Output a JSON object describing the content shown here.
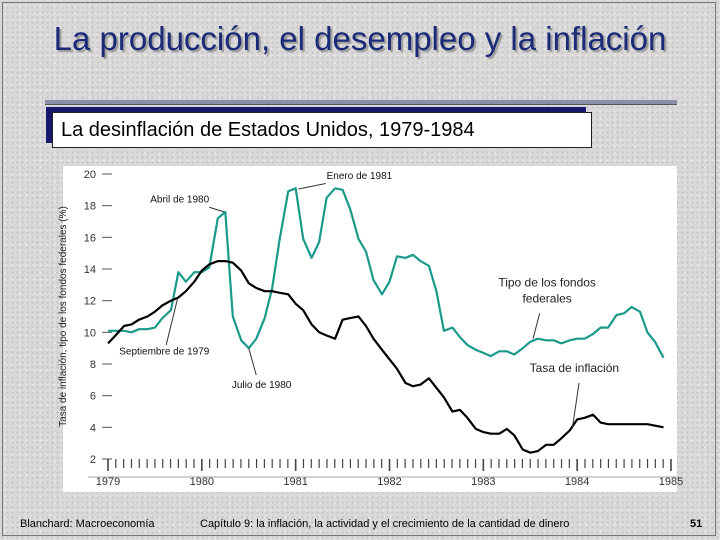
{
  "slide": {
    "title": "La producción, el desempleo y la inflación",
    "subtitle": "La desinflación de Estados Unidos, 1979-1984",
    "footer_left": "Blanchard: Macroeconomía",
    "footer_center": "Capítulo 9: la inflación, la actividad y el crecimiento de la cantidad de dinero",
    "page_number": "51"
  },
  "colors": {
    "title": "#1a2a78",
    "fed_funds_series": "#1a9a8a",
    "inflation_series": "#000000",
    "subtitle_shadow": "#15186b"
  },
  "chart_data": {
    "type": "line",
    "title": "",
    "xlabel": "",
    "ylabel": "Tasa de inflación, tipo de los fondos federales (%)",
    "xlim": [
      1979.0,
      1985.0
    ],
    "ylim": [
      2,
      20
    ],
    "yticks": [
      2,
      4,
      6,
      8,
      10,
      12,
      14,
      16,
      18,
      20
    ],
    "xticks": [
      1979,
      1980,
      1981,
      1982,
      1983,
      1984,
      1985
    ],
    "xtick_labels": [
      "1979",
      "1980",
      "1981",
      "1982",
      "1983",
      "1984",
      "1985"
    ],
    "grid": false,
    "series": [
      {
        "name": "Tipo de los fondos federales",
        "color": "#1a9a8a",
        "x": [
          1979.0,
          1979.08,
          1979.17,
          1979.25,
          1979.33,
          1979.42,
          1979.5,
          1979.58,
          1979.67,
          1979.75,
          1979.83,
          1979.92,
          1980.0,
          1980.08,
          1980.17,
          1980.25,
          1980.33,
          1980.42,
          1980.5,
          1980.58,
          1980.67,
          1980.75,
          1980.83,
          1980.92,
          1981.0,
          1981.08,
          1981.17,
          1981.25,
          1981.33,
          1981.42,
          1981.5,
          1981.58,
          1981.67,
          1981.75,
          1981.83,
          1981.92,
          1982.0,
          1982.08,
          1982.17,
          1982.25,
          1982.33,
          1982.42,
          1982.5,
          1982.58,
          1982.67,
          1982.75,
          1982.83,
          1982.92,
          1983.0,
          1983.08,
          1983.17,
          1983.25,
          1983.33,
          1983.42,
          1983.5,
          1983.58,
          1983.67,
          1983.75,
          1983.83,
          1983.92,
          1984.0,
          1984.08,
          1984.17,
          1984.25,
          1984.33,
          1984.42,
          1984.5,
          1984.58,
          1984.67,
          1984.75,
          1984.83,
          1984.92
        ],
        "values": [
          10.1,
          10.1,
          10.1,
          10.0,
          10.2,
          10.2,
          10.3,
          10.9,
          11.4,
          13.8,
          13.2,
          13.8,
          13.8,
          14.1,
          17.2,
          17.6,
          11.0,
          9.5,
          9.0,
          9.6,
          10.9,
          12.8,
          15.9,
          18.9,
          19.1,
          15.9,
          14.7,
          15.7,
          18.5,
          19.1,
          19.0,
          17.8,
          15.9,
          15.1,
          13.3,
          12.4,
          13.2,
          14.8,
          14.7,
          14.9,
          14.5,
          14.2,
          12.6,
          10.1,
          10.3,
          9.7,
          9.2,
          8.9,
          8.7,
          8.5,
          8.8,
          8.8,
          8.6,
          9.0,
          9.4,
          9.6,
          9.5,
          9.5,
          9.3,
          9.5,
          9.6,
          9.6,
          9.9,
          10.3,
          10.3,
          11.1,
          11.2,
          11.6,
          11.3,
          9.99,
          9.4,
          8.4
        ]
      },
      {
        "name": "Tasa de inflación",
        "color": "#000000",
        "x": [
          1979.0,
          1979.08,
          1979.17,
          1979.25,
          1979.33,
          1979.42,
          1979.5,
          1979.58,
          1979.67,
          1979.75,
          1979.83,
          1979.92,
          1980.0,
          1980.08,
          1980.17,
          1980.25,
          1980.33,
          1980.42,
          1980.5,
          1980.58,
          1980.67,
          1980.75,
          1980.83,
          1980.92,
          1981.0,
          1981.08,
          1981.17,
          1981.25,
          1981.33,
          1981.42,
          1981.5,
          1981.58,
          1981.67,
          1981.75,
          1981.83,
          1981.92,
          1982.0,
          1982.08,
          1982.17,
          1982.25,
          1982.33,
          1982.42,
          1982.5,
          1982.58,
          1982.67,
          1982.75,
          1982.83,
          1982.92,
          1983.0,
          1983.08,
          1983.17,
          1983.25,
          1983.33,
          1983.42,
          1983.5,
          1983.58,
          1983.67,
          1983.75,
          1983.83,
          1983.92,
          1984.0,
          1984.08,
          1984.17,
          1984.25,
          1984.33,
          1984.5,
          1984.75,
          1984.92
        ],
        "values": [
          9.3,
          9.8,
          10.4,
          10.5,
          10.8,
          11.0,
          11.3,
          11.7,
          12.0,
          12.2,
          12.6,
          13.2,
          13.9,
          14.3,
          14.5,
          14.5,
          14.4,
          13.9,
          13.1,
          12.8,
          12.6,
          12.6,
          12.5,
          12.4,
          11.8,
          11.4,
          10.5,
          10.0,
          9.8,
          9.6,
          10.8,
          10.9,
          11.0,
          10.4,
          9.6,
          8.9,
          8.3,
          7.7,
          6.8,
          6.6,
          6.7,
          7.1,
          6.5,
          5.9,
          5.0,
          5.1,
          4.6,
          3.9,
          3.7,
          3.6,
          3.6,
          3.9,
          3.5,
          2.6,
          2.4,
          2.5,
          2.9,
          2.9,
          3.3,
          3.8,
          4.5,
          4.6,
          4.8,
          4.3,
          4.2,
          4.2,
          4.2,
          4.0
        ]
      }
    ],
    "annotations": [
      {
        "text": "Enero de 1981",
        "x": 1981.0,
        "y": 19.1
      },
      {
        "text": "Abril de 1980",
        "x": 1980.25,
        "y": 17.6
      },
      {
        "text": "Septiembre de 1979",
        "x": 1979.75,
        "y": 12.2
      },
      {
        "text": "Julio de 1980",
        "x": 1980.5,
        "y": 9.0
      },
      {
        "text": "Tipo de los fondos",
        "x": 1983.6,
        "y": 11.8
      },
      {
        "text": "federales",
        "x": 1983.6,
        "y": 11.8
      },
      {
        "text": "Tasa de inflación",
        "x": 1984.0,
        "y": 4.5
      }
    ]
  }
}
